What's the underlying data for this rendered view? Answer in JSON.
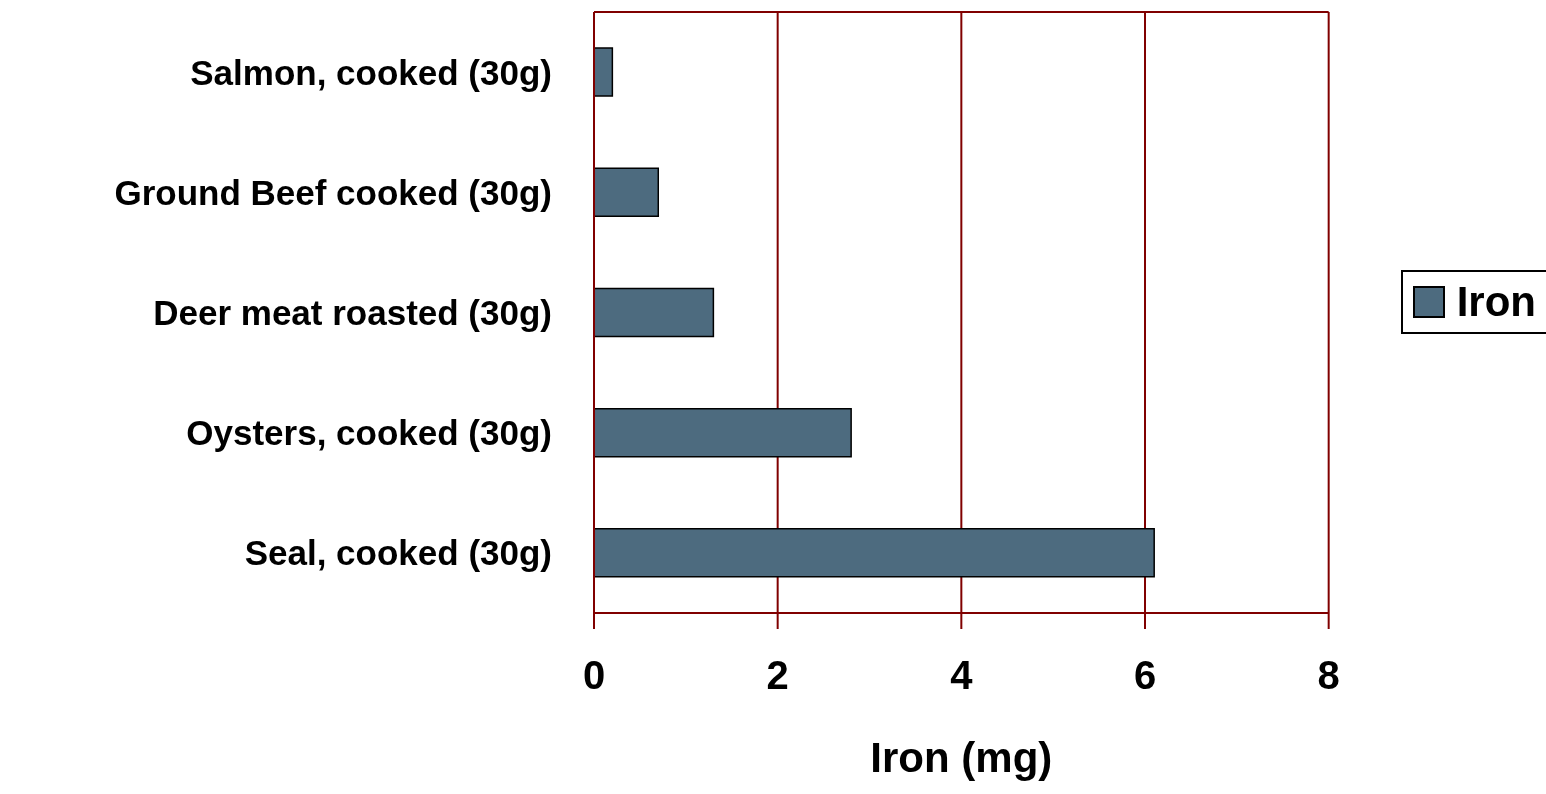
{
  "chart_data": {
    "type": "bar",
    "orientation": "horizontal",
    "categories": [
      "Salmon, cooked (30g)",
      "Ground Beef cooked (30g)",
      "Deer meat roasted (30g)",
      "Oysters, cooked (30g)",
      "Seal, cooked (30g)"
    ],
    "series": [
      {
        "name": "Iron",
        "color": "#4d6b7f",
        "values": [
          0.2,
          0.7,
          1.3,
          2.8,
          6.1
        ]
      }
    ],
    "xlabel": "Iron (mg)",
    "xlim": [
      0,
      8
    ],
    "xticks": [
      0,
      2,
      4,
      6,
      8
    ],
    "grid": "x",
    "legend": "right"
  }
}
